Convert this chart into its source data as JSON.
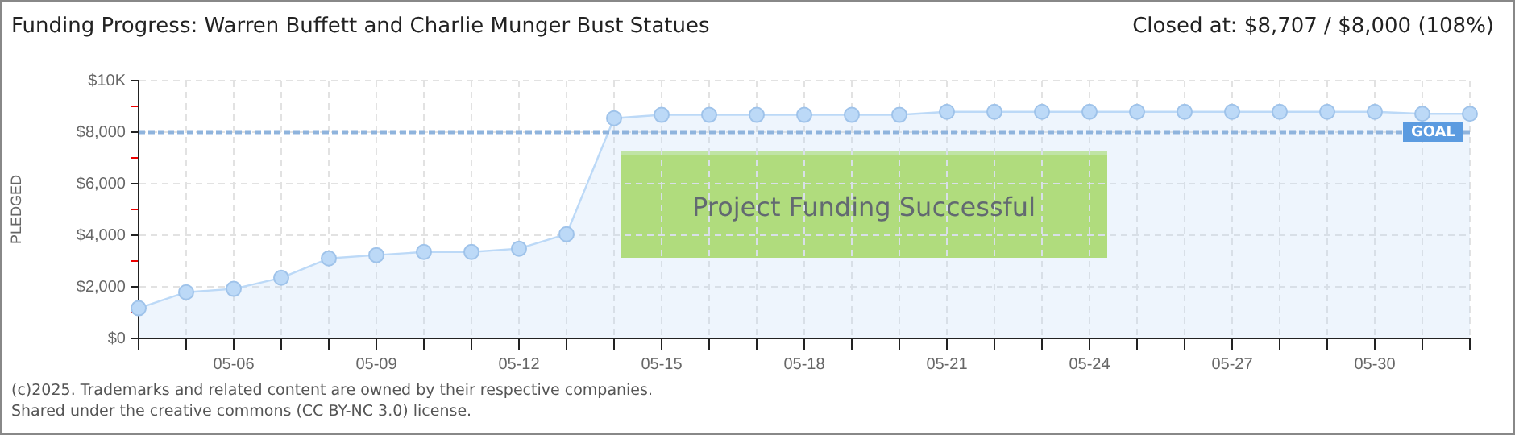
{
  "chart_data": {
    "type": "area",
    "title": "Funding Progress: Warren Buffett and Charlie Munger Bust Statues",
    "subtitle": "Closed at: $8,707 / $8,000 (108%)",
    "ylabel": "PLEDGED",
    "categories": [
      null,
      null,
      "05-06",
      null,
      null,
      "05-09",
      null,
      null,
      "05-12",
      null,
      null,
      "05-15",
      null,
      null,
      "05-18",
      null,
      null,
      "05-21",
      null,
      null,
      "05-24",
      null,
      null,
      "05-27",
      null,
      null,
      "05-30",
      null,
      null
    ],
    "series": [
      {
        "color": "#bcd9f7",
        "values": [
          1170,
          1790,
          1920,
          2350,
          3100,
          3230,
          3350,
          3350,
          3480,
          4040,
          8540,
          8670,
          8670,
          8670,
          8670,
          8670,
          8670,
          8790,
          8790,
          8790,
          8790,
          8790,
          8790,
          8790,
          8790,
          8790,
          8790,
          8710,
          8710
        ]
      }
    ],
    "ylim": [
      0,
      10000
    ],
    "yticks": [
      {
        "value": 0,
        "label": "$0"
      },
      {
        "value": 1000,
        "label": null
      },
      {
        "value": 2000,
        "label": "$2,000"
      },
      {
        "value": 3000,
        "label": null
      },
      {
        "value": 4000,
        "label": "$4,000"
      },
      {
        "value": 5000,
        "label": null
      },
      {
        "value": 6000,
        "label": "$6,000"
      },
      {
        "value": 7000,
        "label": null
      },
      {
        "value": 8000,
        "label": "$8,000"
      },
      {
        "value": 9000,
        "label": null
      },
      {
        "value": 10000,
        "label": "$10K"
      }
    ],
    "ref_lines": [
      {
        "axis": "y",
        "value": 8000,
        "label": "GOAL",
        "color": "#8fb4dd",
        "line_style": "dashed"
      }
    ],
    "annotations": [
      "Project Funding Successful",
      "(c)2025. Trademarks and related content are owned by their respective companies.",
      "Shared under the creative commons (CC BY-NC 3.0) license."
    ],
    "grid": true,
    "legend": false,
    "marker": "circle",
    "line_style": "solid"
  }
}
